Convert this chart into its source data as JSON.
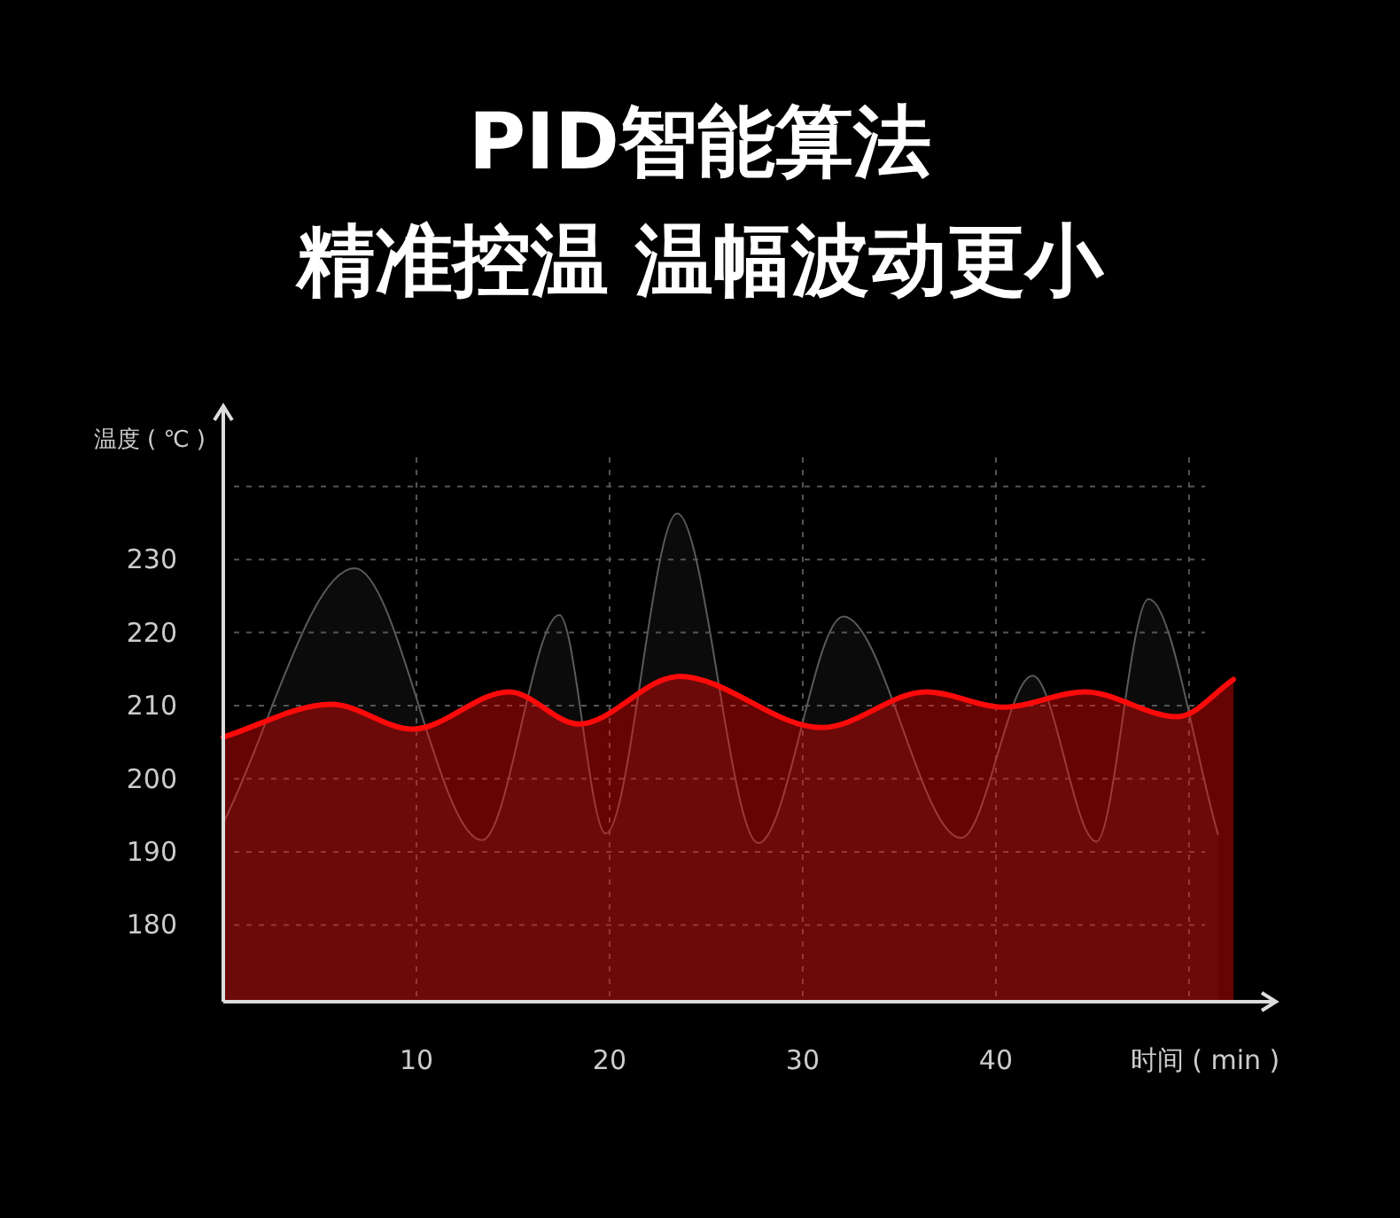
{
  "chart_data": {
    "type": "area",
    "title": "PID智能算法",
    "subtitle": "精准控温 温幅波动更小",
    "xlabel": "时间 ( min )",
    "ylabel": "温度 ( ℃ )",
    "xlim": [
      0,
      54.5
    ],
    "ylim": [
      169.5,
      251
    ],
    "xticks": [
      10,
      20,
      30,
      40,
      {
        "value": 50,
        "label": null
      }
    ],
    "yticks": [
      180,
      190,
      200,
      210,
      220,
      230,
      {
        "value": 240,
        "label": null
      }
    ],
    "grid": true,
    "marker": "none",
    "series": [
      {
        "color": "#5a5a5a",
        "x": [
          0,
          6.8,
          13.4,
          17.4,
          19.8,
          23.5,
          27.7,
          32.1,
          38.2,
          41.9,
          45.2,
          47.9,
          51.5
        ],
        "values": [
          194,
          228.8,
          191.6,
          222.4,
          192.5,
          236.3,
          191.2,
          222.2,
          191.9,
          214.1,
          191.4,
          224.6,
          192.4
        ]
      },
      {
        "color": "#ff0a0a",
        "x": [
          0,
          5.6,
          9.8,
          14.8,
          18.4,
          23.6,
          31,
          36.4,
          40.4,
          44.6,
          49.4,
          52.3
        ],
        "values": [
          205.7,
          210.2,
          206.8,
          211.9,
          207.5,
          214.0,
          207.0,
          211.9,
          209.8,
          211.9,
          208.5,
          213.6
        ]
      }
    ]
  }
}
